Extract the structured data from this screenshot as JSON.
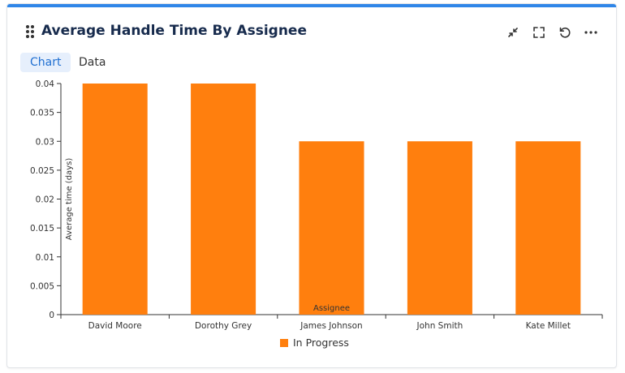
{
  "widget": {
    "title": "Average Handle Time By Assignee",
    "accent_color": "#2f86e8",
    "header_icons": [
      "collapse-icon",
      "fullscreen-icon",
      "refresh-icon",
      "more-icon"
    ]
  },
  "tabs": [
    {
      "label": "Chart",
      "active": true
    },
    {
      "label": "Data",
      "active": false
    }
  ],
  "chart_data": {
    "type": "bar",
    "title": "",
    "xlabel": "Assignee",
    "ylabel": "Average time (days)",
    "categories": [
      "David Moore",
      "Dorothy Grey",
      "James Johnson",
      "John Smith",
      "Kate Millet"
    ],
    "series": [
      {
        "name": "In Progress",
        "color": "#ff7f0e",
        "values": [
          0.04,
          0.04,
          0.03,
          0.03,
          0.03
        ]
      }
    ],
    "ylim": [
      0,
      0.04
    ],
    "yticks": [
      "0",
      "0.005",
      "0.01",
      "0.015",
      "0.02",
      "0.025",
      "0.03",
      "0.035",
      "0.04"
    ],
    "grid": false,
    "legend_position": "bottom"
  }
}
